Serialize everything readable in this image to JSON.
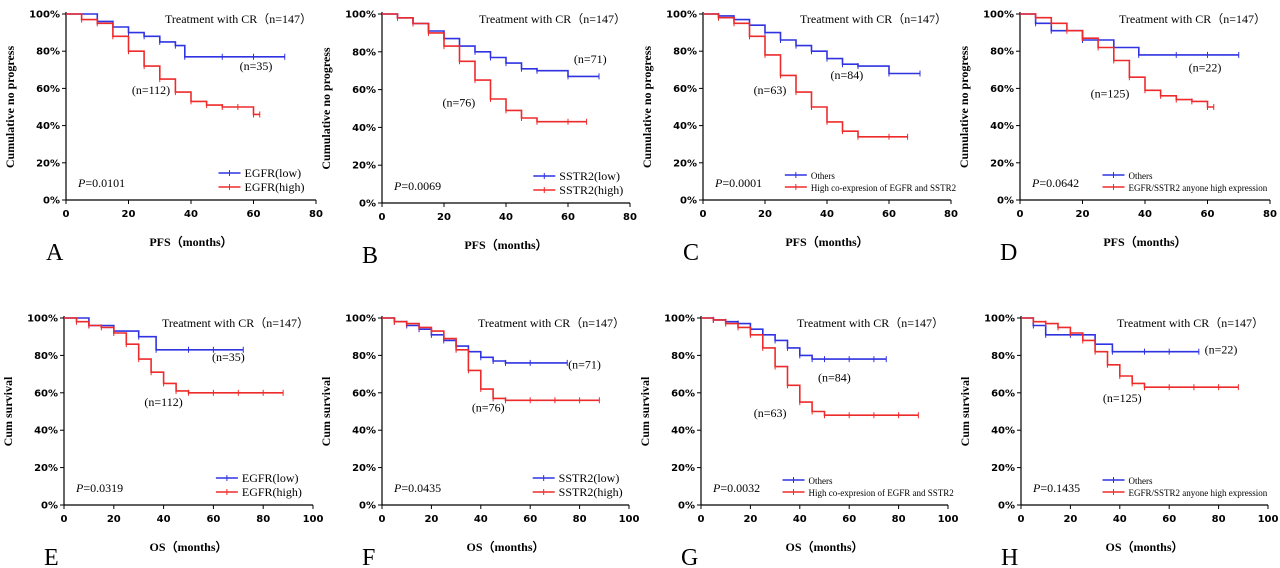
{
  "chart_data": [
    {
      "type": "line",
      "panel_label": "A",
      "xlabel": "PFS（months）",
      "ylabel": "Cumulative no progress",
      "xlim": [
        0,
        80
      ],
      "x_ticks": [
        0,
        20,
        40,
        60,
        80
      ],
      "ylim": [
        0,
        100
      ],
      "y_ticks": [
        "0%",
        "20%",
        "40%",
        "60%",
        "80%",
        "100%"
      ],
      "annotation": "Treatment with CR（n=147）",
      "p_value": "=0.0101",
      "series": [
        {
          "name": "EGFR(low)",
          "color": "#2f33e0",
          "n_label": "(n=35)",
          "x": [
            0,
            10,
            15,
            20,
            25,
            30,
            35,
            38,
            50,
            60,
            70
          ],
          "y": [
            100,
            96,
            93,
            90,
            88,
            85,
            83,
            77,
            77,
            77,
            77
          ]
        },
        {
          "name": "EGFR(high)",
          "color": "#ee2b2b",
          "n_label": "(n=112)",
          "x": [
            0,
            5,
            10,
            15,
            20,
            25,
            30,
            35,
            40,
            45,
            50,
            55,
            60,
            62
          ],
          "y": [
            100,
            97,
            95,
            88,
            80,
            72,
            65,
            58,
            53,
            51,
            50,
            50,
            46,
            46
          ]
        }
      ]
    },
    {
      "type": "line",
      "panel_label": "B",
      "xlabel": "PFS（months）",
      "ylabel": "Cumulative no progress",
      "xlim": [
        0,
        80
      ],
      "x_ticks": [
        0,
        20,
        40,
        60,
        80
      ],
      "ylim": [
        0,
        100
      ],
      "y_ticks": [
        "0%",
        "20%",
        "40%",
        "60%",
        "80%",
        "100%"
      ],
      "annotation": "Treatment with CR（n=147）",
      "p_value": "=0.0069",
      "series": [
        {
          "name": "SSTR2(low)",
          "color": "#2f33e0",
          "n_label": "(n=71)",
          "x": [
            0,
            5,
            10,
            15,
            20,
            25,
            30,
            35,
            40,
            45,
            50,
            60,
            70
          ],
          "y": [
            100,
            98,
            95,
            91,
            87,
            83,
            80,
            77,
            74,
            71,
            70,
            67,
            67
          ]
        },
        {
          "name": "SSTR2(high)",
          "color": "#ee2b2b",
          "n_label": "(n=76)",
          "x": [
            0,
            5,
            10,
            15,
            20,
            25,
            30,
            35,
            40,
            45,
            50,
            60,
            66
          ],
          "y": [
            100,
            98,
            95,
            90,
            83,
            75,
            65,
            55,
            49,
            45,
            43,
            43,
            43
          ]
        }
      ]
    },
    {
      "type": "line",
      "panel_label": "C",
      "xlabel": "PFS（months）",
      "ylabel": "Cumulative no progress",
      "xlim": [
        0,
        80
      ],
      "x_ticks": [
        0,
        20,
        40,
        60,
        80
      ],
      "ylim": [
        0,
        100
      ],
      "y_ticks": [
        "0%",
        "20%",
        "40%",
        "60%",
        "80%",
        "100%"
      ],
      "annotation": "Treatment with CR（n=147）",
      "p_value": "=0.0001",
      "series": [
        {
          "name": "Others",
          "color": "#2f33e0",
          "n_label": "(n=84)",
          "x": [
            0,
            5,
            10,
            15,
            20,
            25,
            30,
            35,
            40,
            45,
            50,
            60,
            70
          ],
          "y": [
            100,
            99,
            97,
            94,
            90,
            86,
            83,
            80,
            76,
            73,
            72,
            68,
            68
          ]
        },
        {
          "name": "High co-expresion of EGFR and SSTR2",
          "color": "#ee2b2b",
          "n_label": "(n=63)",
          "x": [
            0,
            5,
            10,
            15,
            20,
            25,
            30,
            35,
            40,
            45,
            50,
            60,
            66
          ],
          "y": [
            100,
            98,
            95,
            88,
            78,
            67,
            58,
            50,
            42,
            37,
            34,
            34,
            34
          ]
        }
      ]
    },
    {
      "type": "line",
      "panel_label": "D",
      "xlabel": "PFS（months）",
      "ylabel": "Cumulative no progress",
      "xlim": [
        0,
        80
      ],
      "x_ticks": [
        0,
        20,
        40,
        60,
        80
      ],
      "ylim": [
        0,
        100
      ],
      "y_ticks": [
        "0%",
        "20%",
        "40%",
        "60%",
        "80%",
        "100%"
      ],
      "annotation": "Treatment with CR（n=147）",
      "p_value": "=0.0642",
      "series": [
        {
          "name": "Others",
          "color": "#2f33e0",
          "n_label": "(n=22)",
          "x": [
            0,
            5,
            10,
            20,
            30,
            38,
            50,
            60,
            70
          ],
          "y": [
            100,
            95,
            91,
            86,
            82,
            78,
            78,
            78,
            78
          ]
        },
        {
          "name": "EGFR/SSTR2 anyone high expression",
          "color": "#ee2b2b",
          "n_label": "(n=125)",
          "x": [
            0,
            5,
            10,
            15,
            20,
            25,
            30,
            35,
            40,
            45,
            50,
            55,
            60,
            62
          ],
          "y": [
            100,
            98,
            95,
            91,
            87,
            82,
            75,
            66,
            59,
            56,
            54,
            53,
            50,
            50
          ]
        }
      ]
    },
    {
      "type": "line",
      "panel_label": "E",
      "xlabel": "OS（months）",
      "ylabel": "Cum survival",
      "xlim": [
        0,
        100
      ],
      "x_ticks": [
        0,
        20,
        40,
        60,
        80,
        100
      ],
      "ylim": [
        0,
        100
      ],
      "y_ticks": [
        "0%",
        "20%",
        "40%",
        "60%",
        "80%",
        "100%"
      ],
      "annotation": "Treatment with CR（n=147）",
      "p_value": "=0.0319",
      "series": [
        {
          "name": "EGFR(low)",
          "color": "#2f33e0",
          "n_label": "(n=35)",
          "x": [
            0,
            10,
            20,
            30,
            37,
            50,
            60,
            72
          ],
          "y": [
            100,
            96,
            93,
            90,
            83,
            83,
            83,
            83
          ]
        },
        {
          "name": "EGFR(high)",
          "color": "#ee2b2b",
          "n_label": "(n=112)",
          "x": [
            0,
            5,
            10,
            15,
            20,
            25,
            30,
            35,
            40,
            45,
            50,
            60,
            70,
            80,
            88
          ],
          "y": [
            100,
            98,
            96,
            95,
            92,
            86,
            78,
            71,
            65,
            61,
            60,
            60,
            60,
            60,
            60
          ]
        }
      ]
    },
    {
      "type": "line",
      "panel_label": "F",
      "xlabel": "OS（months）",
      "ylabel": "Cum survival",
      "xlim": [
        0,
        100
      ],
      "x_ticks": [
        0,
        20,
        40,
        60,
        80,
        100
      ],
      "ylim": [
        0,
        100
      ],
      "y_ticks": [
        "0%",
        "20%",
        "40%",
        "60%",
        "80%",
        "100%"
      ],
      "annotation": "Treatment with CR（n=147）",
      "p_value": "=0.0435",
      "series": [
        {
          "name": "SSTR2(low)",
          "color": "#2f33e0",
          "n_label": "(n=71)",
          "x": [
            0,
            5,
            10,
            15,
            20,
            25,
            30,
            35,
            40,
            45,
            50,
            60,
            75
          ],
          "y": [
            100,
            98,
            96,
            94,
            91,
            88,
            85,
            82,
            79,
            77,
            76,
            76,
            76
          ]
        },
        {
          "name": "SSTR2(high)",
          "color": "#ee2b2b",
          "n_label": "(n=76)",
          "x": [
            0,
            5,
            10,
            15,
            20,
            25,
            30,
            35,
            40,
            45,
            50,
            60,
            70,
            80,
            88
          ],
          "y": [
            100,
            98,
            97,
            95,
            93,
            89,
            83,
            72,
            62,
            57,
            56,
            56,
            56,
            56,
            56
          ]
        }
      ]
    },
    {
      "type": "line",
      "panel_label": "G",
      "xlabel": "OS（months）",
      "ylabel": "Cum survival",
      "xlim": [
        0,
        100
      ],
      "x_ticks": [
        0,
        20,
        40,
        60,
        80,
        100
      ],
      "ylim": [
        0,
        100
      ],
      "y_ticks": [
        "0%",
        "20%",
        "40%",
        "60%",
        "80%",
        "100%"
      ],
      "annotation": "Treatment with CR（n=147）",
      "p_value": "=0.0032",
      "series": [
        {
          "name": "Others",
          "color": "#2f33e0",
          "n_label": "(n=84)",
          "x": [
            0,
            5,
            10,
            15,
            20,
            25,
            30,
            35,
            40,
            45,
            50,
            60,
            70,
            75
          ],
          "y": [
            100,
            99,
            98,
            97,
            94,
            91,
            88,
            84,
            80,
            78,
            78,
            78,
            78,
            78
          ]
        },
        {
          "name": "High co-expresion of EGFR and SSTR2",
          "color": "#ee2b2b",
          "n_label": "(n=63)",
          "x": [
            0,
            5,
            10,
            15,
            20,
            25,
            30,
            35,
            40,
            45,
            50,
            60,
            70,
            80,
            88
          ],
          "y": [
            100,
            99,
            97,
            95,
            91,
            84,
            74,
            64,
            55,
            50,
            48,
            48,
            48,
            48,
            48
          ]
        }
      ]
    },
    {
      "type": "line",
      "panel_label": "H",
      "xlabel": "OS（months）",
      "ylabel": "Cum survival",
      "xlim": [
        0,
        100
      ],
      "x_ticks": [
        0,
        20,
        40,
        60,
        80,
        100
      ],
      "ylim": [
        0,
        100
      ],
      "y_ticks": [
        "0%",
        "20%",
        "40%",
        "60%",
        "80%",
        "100%"
      ],
      "annotation": "Treatment with CR（n=147）",
      "p_value": "=0.1435",
      "series": [
        {
          "name": "Others",
          "color": "#2f33e0",
          "n_label": "(n=22)",
          "x": [
            0,
            5,
            10,
            20,
            30,
            37,
            50,
            60,
            72
          ],
          "y": [
            100,
            96,
            91,
            91,
            86,
            82,
            82,
            82,
            82
          ]
        },
        {
          "name": "EGFR/SSTR2 anyone high expression",
          "color": "#ee2b2b",
          "n_label": "(n=125)",
          "x": [
            0,
            5,
            10,
            15,
            20,
            25,
            30,
            35,
            40,
            45,
            50,
            60,
            70,
            80,
            88
          ],
          "y": [
            100,
            98,
            97,
            95,
            92,
            88,
            82,
            75,
            69,
            65,
            63,
            63,
            63,
            63,
            63
          ]
        }
      ]
    }
  ]
}
